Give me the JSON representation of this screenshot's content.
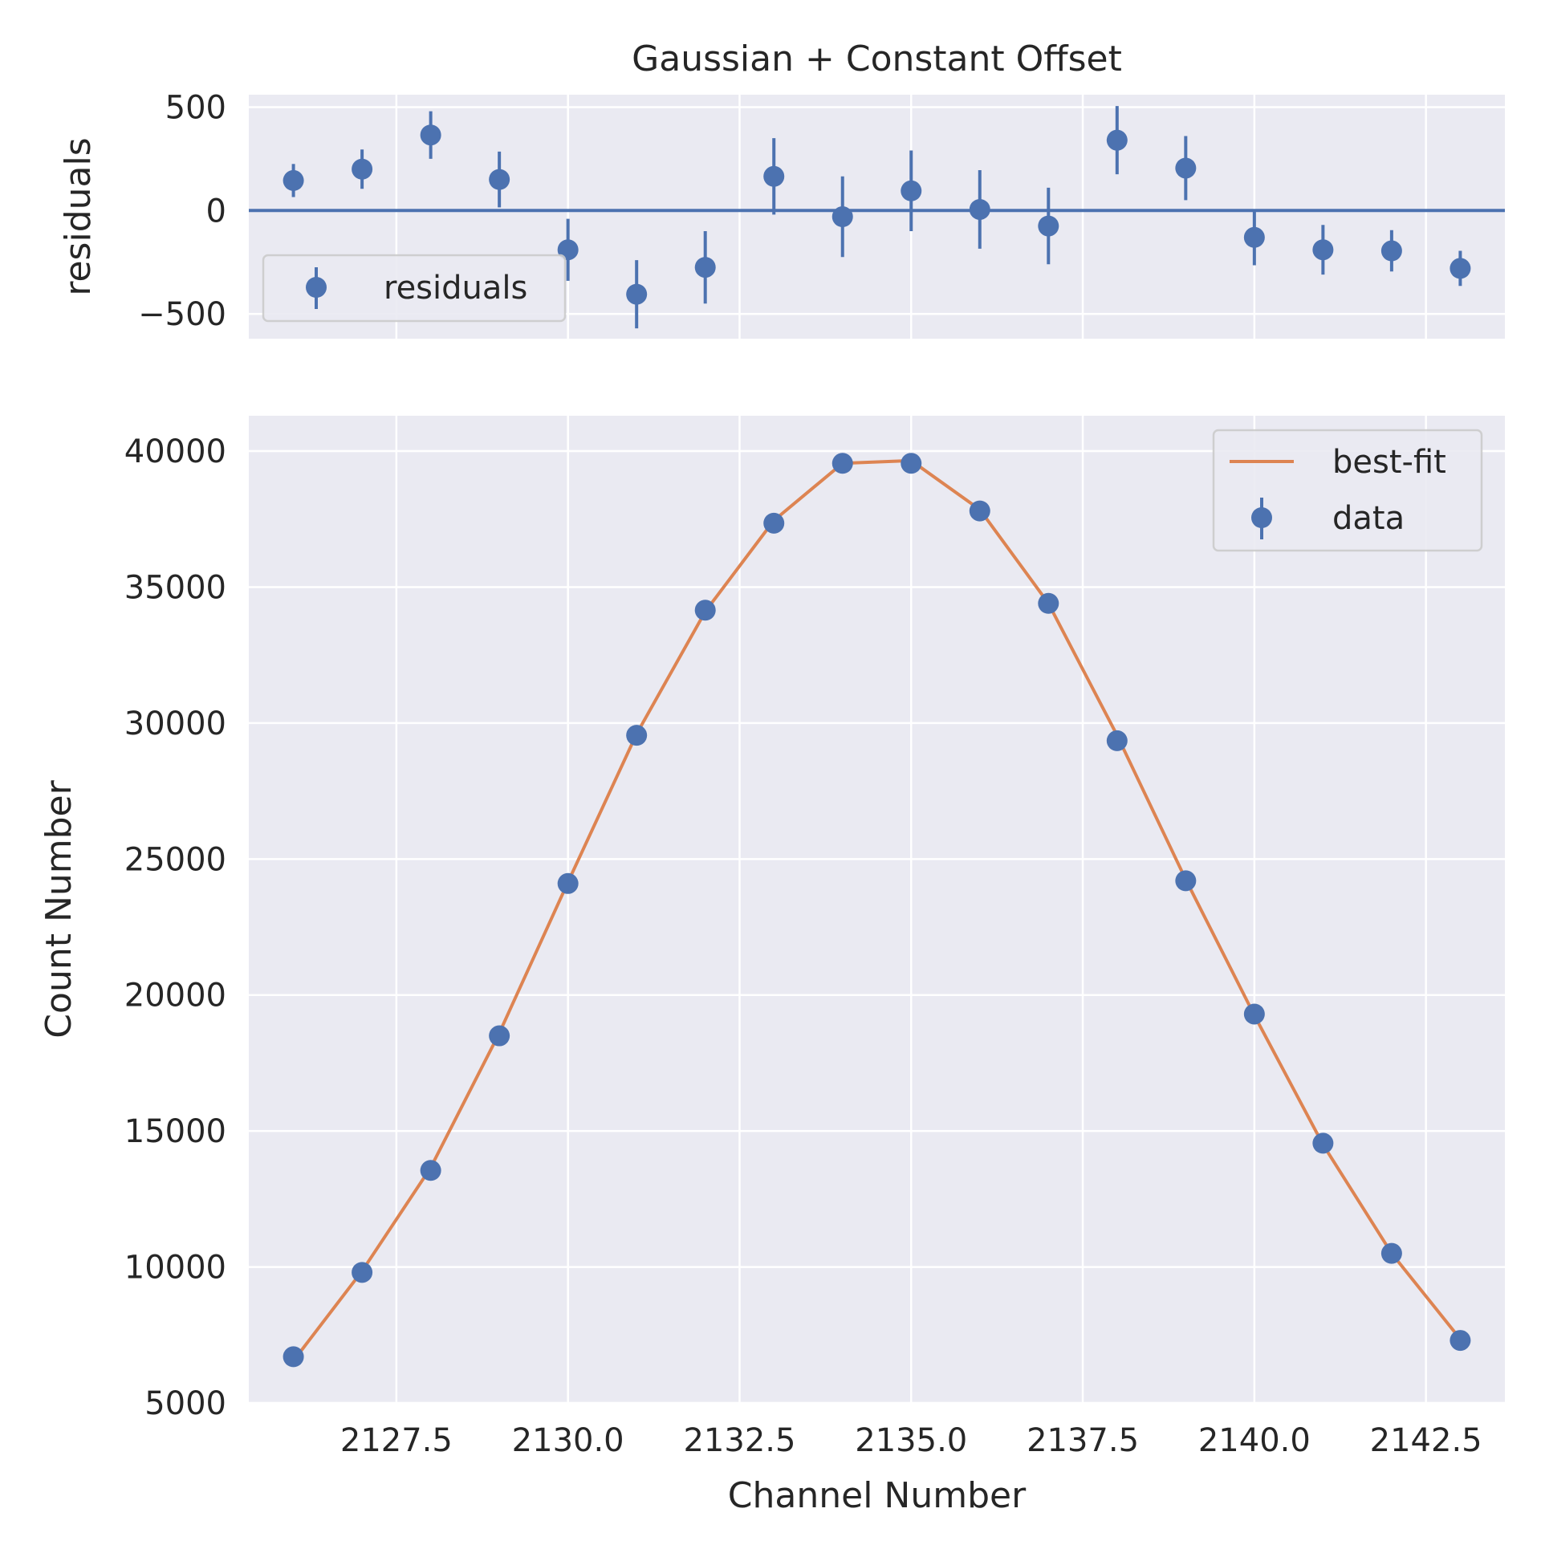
{
  "chart_data": [
    {
      "type": "scatter",
      "panel": "residuals",
      "title": "Gaussian + Constant Offset",
      "xlabel": "",
      "ylabel": "residuals",
      "xlim": [
        2125.35,
        2143.65
      ],
      "ylim": [
        -620,
        560
      ],
      "xticks": [
        2127.5,
        2130.0,
        2132.5,
        2135.0,
        2137.5,
        2140.0,
        2142.5
      ],
      "yticks": [
        -500,
        0,
        500
      ],
      "ytick_labels": [
        "−500",
        "0",
        "500"
      ],
      "grid": true,
      "legend": {
        "position": "lower-left",
        "entries": [
          "residuals"
        ]
      },
      "reference_line": 0,
      "series": [
        {
          "name": "residuals",
          "x": [
            2126,
            2127,
            2128,
            2129,
            2130,
            2131,
            2132,
            2133,
            2134,
            2135,
            2136,
            2137,
            2138,
            2139,
            2140,
            2141,
            2142,
            2143
          ],
          "y": [
            145,
            200,
            365,
            150,
            -190,
            -405,
            -275,
            165,
            -30,
            95,
            5,
            -75,
            340,
            205,
            -130,
            -190,
            -195,
            -280
          ],
          "yerr": [
            80,
            95,
            115,
            135,
            150,
            165,
            175,
            185,
            195,
            195,
            190,
            185,
            165,
            155,
            135,
            120,
            100,
            85
          ]
        }
      ]
    },
    {
      "type": "line",
      "panel": "main",
      "title": "",
      "xlabel": "Channel Number",
      "ylabel": "Count Number",
      "xlim": [
        2125.35,
        2143.65
      ],
      "ylim": [
        5000,
        41300
      ],
      "xticks": [
        2127.5,
        2130.0,
        2132.5,
        2135.0,
        2137.5,
        2140.0,
        2142.5
      ],
      "xtick_labels": [
        "2127.5",
        "2130.0",
        "2132.5",
        "2135.0",
        "2137.5",
        "2140.0",
        "2142.5"
      ],
      "yticks": [
        5000,
        10000,
        15000,
        20000,
        25000,
        30000,
        35000,
        40000
      ],
      "ytick_labels": [
        "5000",
        "10000",
        "15000",
        "20000",
        "25000",
        "30000",
        "35000",
        "40000"
      ],
      "grid": true,
      "legend": {
        "position": "top-right",
        "entries": [
          "best-fit",
          "data"
        ]
      },
      "series": [
        {
          "name": "best-fit",
          "x": [
            2126,
            2127,
            2128,
            2129,
            2130,
            2131,
            2132,
            2133,
            2134,
            2135,
            2136,
            2137,
            2138,
            2139,
            2140,
            2141,
            2142,
            2143
          ],
          "y": [
            6550,
            9850,
            13650,
            18600,
            24150,
            29600,
            34100,
            37450,
            39550,
            39650,
            37850,
            34400,
            29550,
            24250,
            19250,
            14500,
            10500,
            7350
          ]
        },
        {
          "name": "data",
          "x": [
            2126,
            2127,
            2128,
            2129,
            2130,
            2131,
            2132,
            2133,
            2134,
            2135,
            2136,
            2137,
            2138,
            2139,
            2140,
            2141,
            2142,
            2143
          ],
          "y": [
            6700,
            9800,
            13550,
            18500,
            24100,
            29550,
            34150,
            37350,
            39550,
            39550,
            37800,
            34400,
            29350,
            24200,
            19300,
            14550,
            10500,
            7300
          ]
        }
      ]
    }
  ],
  "colors": {
    "axes_bg": "#EAEAF2",
    "grid": "#FFFFFF",
    "data": "#4C72B0",
    "fit": "#DD8452",
    "text": "#262626"
  }
}
